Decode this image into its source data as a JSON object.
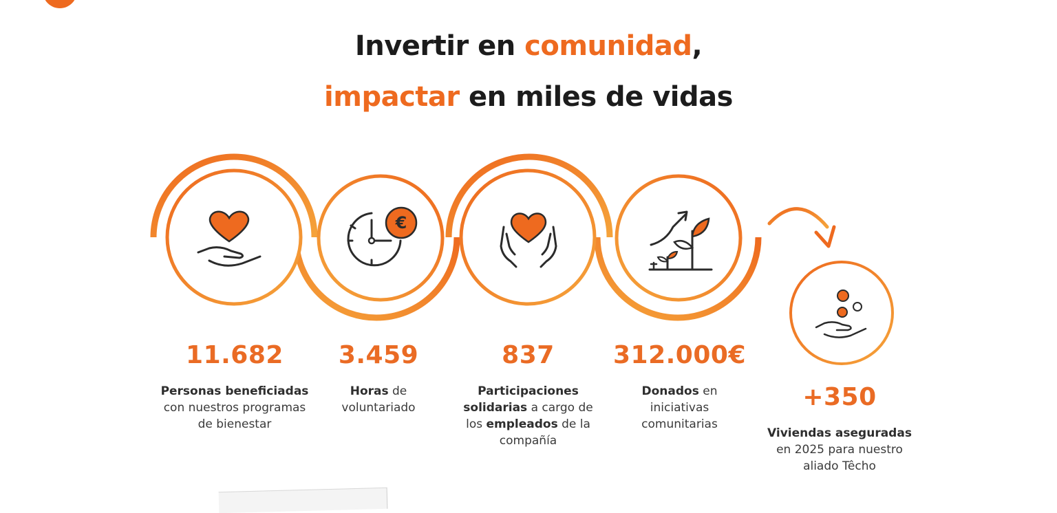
{
  "headline": {
    "line1_start": "Invertir en ",
    "line1_accent": "comunidad",
    "line1_end": ",",
    "line2_accent": "impactar",
    "line2_end": " en miles de vidas"
  },
  "stats": [
    {
      "value": "11.682",
      "desc": [
        {
          "t": "Personas beneficiadas",
          "b": true
        },
        {
          "t": "\ncon nuestros programas\nde bienestar",
          "b": false
        }
      ],
      "icon": "heart-in-hand-icon"
    },
    {
      "value": "3.459",
      "desc": [
        {
          "t": "Horas",
          "b": true
        },
        {
          "t": " de\nvoluntariado",
          "b": false
        }
      ],
      "icon": "clock-euro-icon"
    },
    {
      "value": "837",
      "desc": [
        {
          "t": "Participaciones\nsolidarias",
          "b": true
        },
        {
          "t": " a cargo de\nlos ",
          "b": false
        },
        {
          "t": "empleados",
          "b": true
        },
        {
          "t": " de la\ncompañía",
          "b": false
        }
      ],
      "icon": "heart-between-hands-icon"
    },
    {
      "value": "312.000€",
      "desc": [
        {
          "t": "Donados",
          "b": true
        },
        {
          "t": " en\niniciativas\ncomunitarias",
          "b": false
        }
      ],
      "icon": "growing-plants-icon"
    },
    {
      "value": "+350",
      "desc": [
        {
          "t": "Viviendas aseguradas",
          "b": true
        },
        {
          "t": "\nen 2025 para nuestro\naliado Têcho",
          "b": false
        }
      ],
      "icon": "coins-in-hand-icon"
    }
  ],
  "colors": {
    "accent": "#ee6a1f",
    "accent_light": "#f5a33a",
    "text": "#3a3a3a",
    "icon_line": "#2b2b2b"
  }
}
